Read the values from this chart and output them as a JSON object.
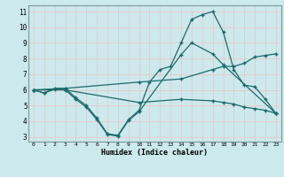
{
  "xlabel": "Humidex (Indice chaleur)",
  "bg_color": "#cce9ed",
  "line_color": "#1a6b6b",
  "grid_color": "#e8c8c8",
  "xlim": [
    -0.5,
    23.5
  ],
  "ylim": [
    2.7,
    11.4
  ],
  "xticks": [
    0,
    1,
    2,
    3,
    4,
    5,
    6,
    7,
    8,
    9,
    10,
    11,
    12,
    13,
    14,
    15,
    16,
    17,
    18,
    19,
    20,
    21,
    22,
    23
  ],
  "yticks": [
    3,
    4,
    5,
    6,
    7,
    8,
    9,
    10,
    11
  ],
  "lines": [
    {
      "x": [
        0,
        1,
        2,
        3,
        4,
        5,
        6,
        7,
        8,
        9,
        10,
        11,
        12,
        13,
        14,
        15,
        16,
        17,
        18,
        19,
        20,
        21,
        22,
        23
      ],
      "y": [
        6.0,
        5.8,
        6.1,
        6.1,
        5.5,
        5.0,
        4.2,
        3.2,
        3.1,
        4.1,
        4.7,
        6.5,
        7.3,
        7.5,
        9.0,
        10.5,
        10.8,
        11.0,
        9.7,
        7.3,
        6.3,
        6.2,
        5.4,
        4.5
      ]
    },
    {
      "x": [
        0,
        1,
        2,
        3,
        4,
        5,
        6,
        7,
        8,
        9,
        10,
        14,
        15,
        17,
        18,
        23
      ],
      "y": [
        6.0,
        5.8,
        6.05,
        6.0,
        5.4,
        4.9,
        4.1,
        3.15,
        3.05,
        4.05,
        4.6,
        8.25,
        9.0,
        8.3,
        7.6,
        4.5
      ]
    },
    {
      "x": [
        0,
        3,
        10,
        14,
        17,
        18,
        19,
        20,
        21,
        22,
        23
      ],
      "y": [
        6.0,
        6.1,
        6.5,
        6.7,
        7.3,
        7.5,
        7.5,
        7.7,
        8.1,
        8.2,
        8.3
      ]
    },
    {
      "x": [
        0,
        3,
        10,
        14,
        17,
        18,
        19,
        20,
        21,
        22,
        23
      ],
      "y": [
        6.0,
        6.0,
        5.2,
        5.4,
        5.3,
        5.2,
        5.1,
        4.9,
        4.8,
        4.7,
        4.5
      ]
    }
  ]
}
